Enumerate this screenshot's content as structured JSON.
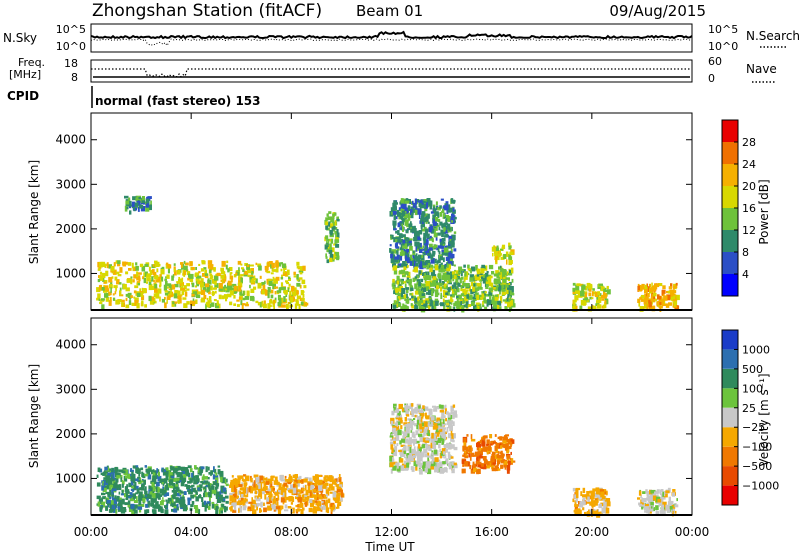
{
  "header": {
    "station": "Zhongshan Station (fitACF)",
    "beam": "Beam 01",
    "date": "09/Aug/2015"
  },
  "panels": {
    "nsky": {
      "label": "N.Sky",
      "left_ticks": [
        "10^5",
        "10^0"
      ],
      "right_ticks": [
        "10^5",
        "10^0"
      ],
      "right_label": "N.Search"
    },
    "freq": {
      "label_line1": "Freq.",
      "label_line2": "[MHz]",
      "left_ticks": [
        "18",
        "8"
      ],
      "right_ticks": [
        "60",
        "0"
      ],
      "right_label": "Nave"
    },
    "cpid": {
      "label": "CPID",
      "mode": "normal (fast stereo) 153"
    }
  },
  "axes": {
    "x_label": "Time UT",
    "x_ticks": [
      "00:00",
      "04:00",
      "08:00",
      "12:00",
      "16:00",
      "20:00",
      "00:00"
    ],
    "y_label": "Slant Range [km]",
    "y_ticks": [
      "1000",
      "2000",
      "3000",
      "4000"
    ]
  },
  "colorbars": {
    "power": {
      "label": "Power [dB]",
      "ticks": [
        "4",
        "8",
        "12",
        "16",
        "20",
        "24",
        "28"
      ],
      "colors": [
        "#0000ff",
        "#2b4fc6",
        "#2f8a6a",
        "#6ec23a",
        "#d8d800",
        "#f5b000",
        "#f07000",
        "#e80000"
      ]
    },
    "velocity": {
      "label": "Velocity [m s⁻¹]",
      "ticks": [
        "1000",
        "500",
        "100",
        "25",
        "−25",
        "−100",
        "−500",
        "−1000"
      ],
      "colors": [
        "#1a3cc8",
        "#2c6fb0",
        "#2f8a5c",
        "#6cc43c",
        "#c8c8c8",
        "#f5a800",
        "#f07800",
        "#e84a00",
        "#e80000"
      ]
    }
  },
  "chart_data": [
    {
      "type": "heatmap",
      "title": "",
      "xlabel": "Time UT",
      "ylabel": "Slant Range [km]",
      "x_unit": "hours UT",
      "xlim": [
        0,
        24
      ],
      "ylim": [
        180,
        4600
      ],
      "colorbar": "Power [dB]",
      "regions": [
        {
          "t": [
            0.2,
            8.5
          ],
          "r": [
            300,
            1300
          ],
          "value": 18
        },
        {
          "t": [
            1.3,
            2.4
          ],
          "r": [
            2400,
            2750
          ],
          "value": 8
        },
        {
          "t": [
            9.3,
            9.8
          ],
          "r": [
            1300,
            2400
          ],
          "value": 12
        },
        {
          "t": [
            11.9,
            14.5
          ],
          "r": [
            1200,
            2700
          ],
          "value": 8
        },
        {
          "t": [
            12.0,
            16.8
          ],
          "r": [
            250,
            1200
          ],
          "value": 14
        },
        {
          "t": [
            16.0,
            16.8
          ],
          "r": [
            1300,
            1700
          ],
          "value": 16
        },
        {
          "t": [
            19.2,
            20.6
          ],
          "r": [
            250,
            800
          ],
          "value": 18
        },
        {
          "t": [
            21.8,
            23.4
          ],
          "r": [
            250,
            800
          ],
          "value": 22
        }
      ]
    },
    {
      "type": "heatmap",
      "title": "",
      "xlabel": "Time UT",
      "ylabel": "Slant Range [km]",
      "x_unit": "hours UT",
      "xlim": [
        0,
        24
      ],
      "ylim": [
        180,
        4600
      ],
      "colorbar": "Velocity [m s⁻¹]",
      "regions": [
        {
          "t": [
            0.2,
            5.4
          ],
          "r": [
            300,
            1300
          ],
          "value": 100
        },
        {
          "t": [
            5.5,
            10.0
          ],
          "r": [
            300,
            1100
          ],
          "value": -100
        },
        {
          "t": [
            11.9,
            14.5
          ],
          "r": [
            1200,
            2700
          ],
          "value": 0
        },
        {
          "t": [
            14.8,
            16.8
          ],
          "r": [
            1200,
            2000
          ],
          "value": -500
        },
        {
          "t": [
            19.2,
            20.6
          ],
          "r": [
            250,
            800
          ],
          "value": -100
        },
        {
          "t": [
            21.8,
            23.4
          ],
          "r": [
            250,
            800
          ],
          "value": 0
        }
      ]
    }
  ]
}
